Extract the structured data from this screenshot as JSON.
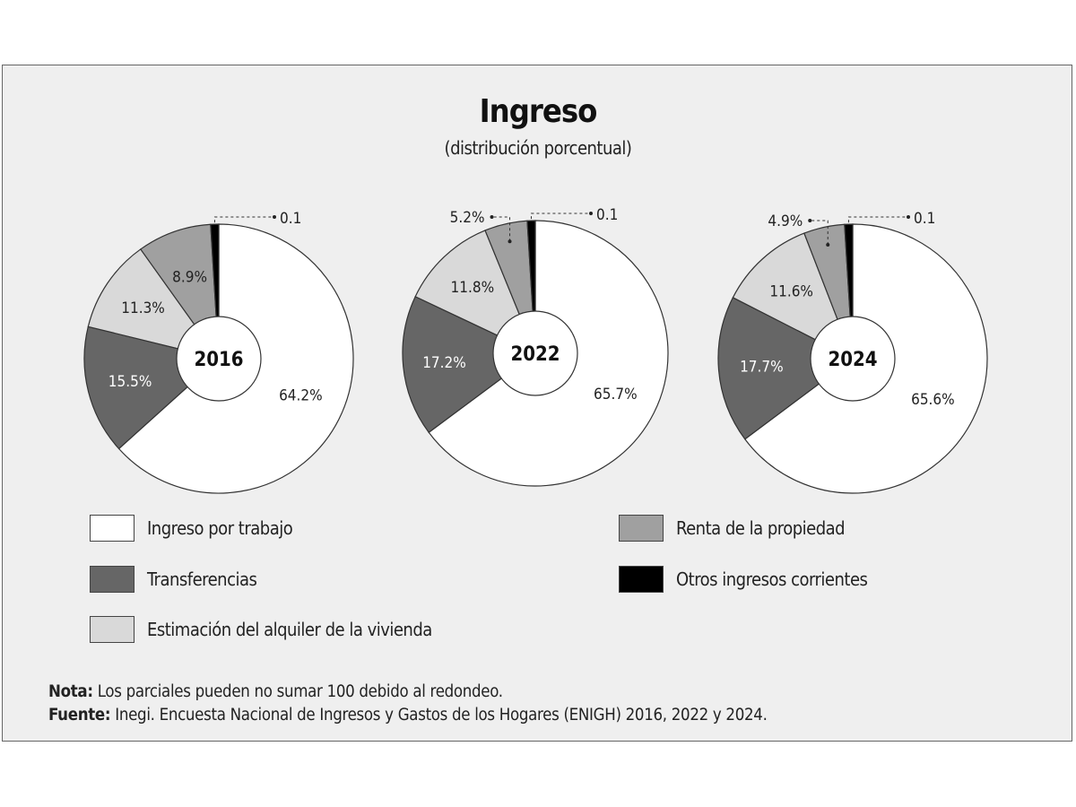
{
  "chart_data": {
    "type": "pie",
    "title": "Ingreso",
    "subtitle": "(distribución porcentual)",
    "categories": [
      "Ingreso por trabajo",
      "Transferencias",
      "Estimación del alquiler de la vivienda",
      "Renta de la propiedad",
      "Otros ingresos corrientes"
    ],
    "colors": [
      "#ffffff",
      "#666666",
      "#d9d9d9",
      "#a0a0a0",
      "#000000"
    ],
    "donut": true,
    "series": [
      {
        "name": "2016",
        "values": [
          64.2,
          15.5,
          11.3,
          8.9,
          0.1
        ],
        "labels": [
          "64.2%",
          "15.5%",
          "11.3%",
          "8.9%",
          "0.1"
        ]
      },
      {
        "name": "2022",
        "values": [
          65.7,
          17.2,
          11.8,
          5.2,
          0.1
        ],
        "labels": [
          "65.7%",
          "17.2%",
          "11.8%",
          "5.2%",
          "0.1"
        ]
      },
      {
        "name": "2024",
        "values": [
          65.6,
          17.7,
          11.6,
          4.9,
          0.1
        ],
        "labels": [
          "65.6%",
          "17.7%",
          "11.6%",
          "4.9%",
          "0.1"
        ]
      }
    ],
    "legend": "bottom"
  },
  "note": {
    "label": "Nota:",
    "text": " Los parciales pueden no sumar 100 debido al redondeo."
  },
  "source": {
    "label": "Fuente:",
    "text": " Inegi. Encuesta Nacional de Ingresos y Gastos de los Hogares (ENIGH) 2016, 2022 y 2024."
  }
}
